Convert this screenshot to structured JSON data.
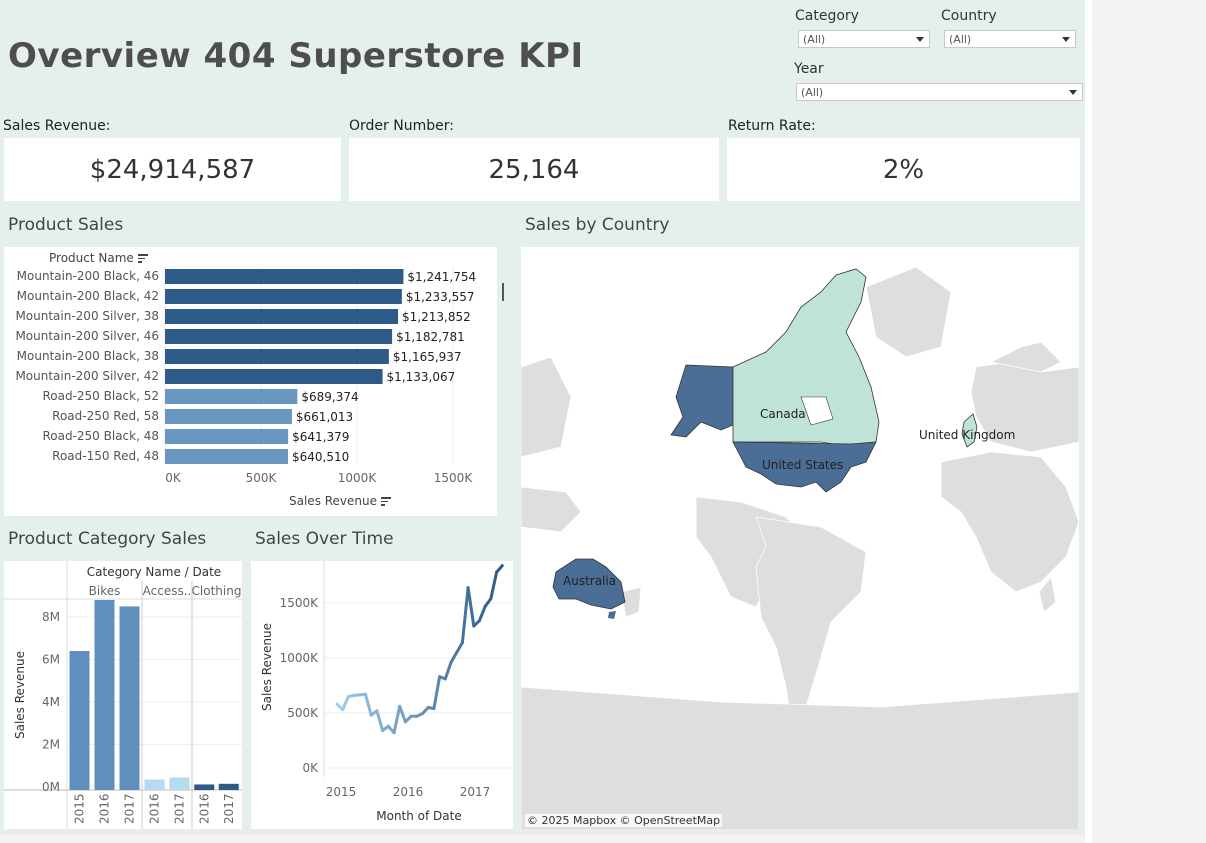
{
  "dashboard_title": "Overview 404 Superstore KPI",
  "filters": {
    "category": {
      "label": "Category",
      "value": "(All)"
    },
    "country": {
      "label": "Country",
      "value": "(All)"
    },
    "year": {
      "label": "Year",
      "value": "(All)"
    }
  },
  "kpis": {
    "sales_revenue": {
      "label": "Sales Revenue:",
      "value": "$24,914,587"
    },
    "order_number": {
      "label": "Order Number:",
      "value": "25,164"
    },
    "return_rate": {
      "label": "Return Rate:",
      "value": "2%"
    }
  },
  "colors": {
    "bikes_dark": "#2e5a87",
    "light_blue": "#6896c0",
    "pale_blue": "#b7daf1",
    "mid_blue": "#5f90bd",
    "map_dark": "#4b6e96",
    "map_light": "#bfe3d8",
    "land": "#dcdcdc"
  },
  "product_sales": {
    "title": "Product Sales",
    "y_header": "Product Name",
    "x_title": "Sales Revenue",
    "chart_data": {
      "type": "bar",
      "orientation": "horizontal",
      "categories": [
        "Mountain-200 Black, 46",
        "Mountain-200 Black, 42",
        "Mountain-200 Silver, 38",
        "Mountain-200 Silver, 46",
        "Mountain-200 Black, 38",
        "Mountain-200 Silver, 42",
        "Road-250 Black, 52",
        "Road-250 Red, 58",
        "Road-250 Black, 48",
        "Road-150 Red, 48"
      ],
      "values": [
        1241754,
        1233557,
        1213852,
        1182781,
        1165937,
        1133067,
        689374,
        661013,
        641379,
        640510
      ],
      "value_labels": [
        "$1,241,754",
        "$1,233,557",
        "$1,213,852",
        "$1,182,781",
        "$1,165,937",
        "$1,133,067",
        "$689,374",
        "$661,013",
        "$641,379",
        "$640,510"
      ],
      "color_group": [
        "dark",
        "dark",
        "dark",
        "dark",
        "dark",
        "dark",
        "light",
        "light",
        "light",
        "light"
      ],
      "x_ticks": [
        0,
        500000,
        1000000,
        1500000
      ],
      "x_tick_labels": [
        "0K",
        "500K",
        "1000K",
        "1500K"
      ],
      "xlim": [
        0,
        1650000
      ]
    }
  },
  "category_sales": {
    "title": "Product Category Sales",
    "header": "Category Name / Date",
    "y_title": "Sales Revenue",
    "chart_data": {
      "type": "bar",
      "groups": [
        {
          "name": "Bikes",
          "years": [
            "2015",
            "2016",
            "2017"
          ],
          "values": [
            6400000,
            8800000,
            8500000
          ],
          "color": "mid"
        },
        {
          "name": "Access..",
          "years": [
            "2016",
            "2017"
          ],
          "values": [
            350000,
            450000
          ],
          "color": "pale"
        },
        {
          "name": "Clothing",
          "years": [
            "2016",
            "2017"
          ],
          "values": [
            120000,
            150000
          ],
          "color": "dark"
        }
      ],
      "y_ticks": [
        0,
        2000000,
        4000000,
        6000000,
        8000000
      ],
      "y_tick_labels": [
        "0M",
        "2M",
        "4M",
        "6M",
        "8M"
      ],
      "ylim": [
        -450000,
        9200000
      ]
    }
  },
  "sales_over_time": {
    "title": "Sales Over Time",
    "y_title": "Sales Revenue",
    "x_title": "Month of Date",
    "chart_data": {
      "type": "line",
      "x": [
        "2015-01",
        "2015-02",
        "2015-03",
        "2015-04",
        "2015-05",
        "2015-06",
        "2015-07",
        "2015-08",
        "2015-09",
        "2015-10",
        "2015-11",
        "2015-12",
        "2016-01",
        "2016-02",
        "2016-03",
        "2016-04",
        "2016-05",
        "2016-06",
        "2016-07",
        "2016-08",
        "2016-09",
        "2016-10",
        "2016-11",
        "2016-12",
        "2017-01",
        "2017-02",
        "2017-03",
        "2017-04",
        "2017-05",
        "2017-06"
      ],
      "values": [
        580000,
        530000,
        650000,
        660000,
        665000,
        670000,
        480000,
        520000,
        340000,
        380000,
        320000,
        560000,
        420000,
        470000,
        470000,
        495000,
        550000,
        540000,
        830000,
        810000,
        960000,
        1050000,
        1140000,
        1640000,
        1290000,
        1340000,
        1470000,
        1540000,
        1780000,
        1840000
      ],
      "y_ticks": [
        0,
        500000,
        1000000,
        1500000
      ],
      "y_tick_labels": [
        "0K",
        "500K",
        "1000K",
        "1500K"
      ],
      "x_tick_labels": [
        "2015",
        "2016",
        "2017"
      ],
      "ylim": [
        -30000,
        1900000
      ]
    }
  },
  "sales_by_country": {
    "title": "Sales by Country",
    "countries": [
      {
        "name": "Canada",
        "shade": "light"
      },
      {
        "name": "United States",
        "shade": "dark"
      },
      {
        "name": "United Kingdom",
        "shade": "light"
      },
      {
        "name": "Australia",
        "shade": "dark"
      }
    ],
    "attribution": "© 2025 Mapbox © OpenStreetMap"
  }
}
